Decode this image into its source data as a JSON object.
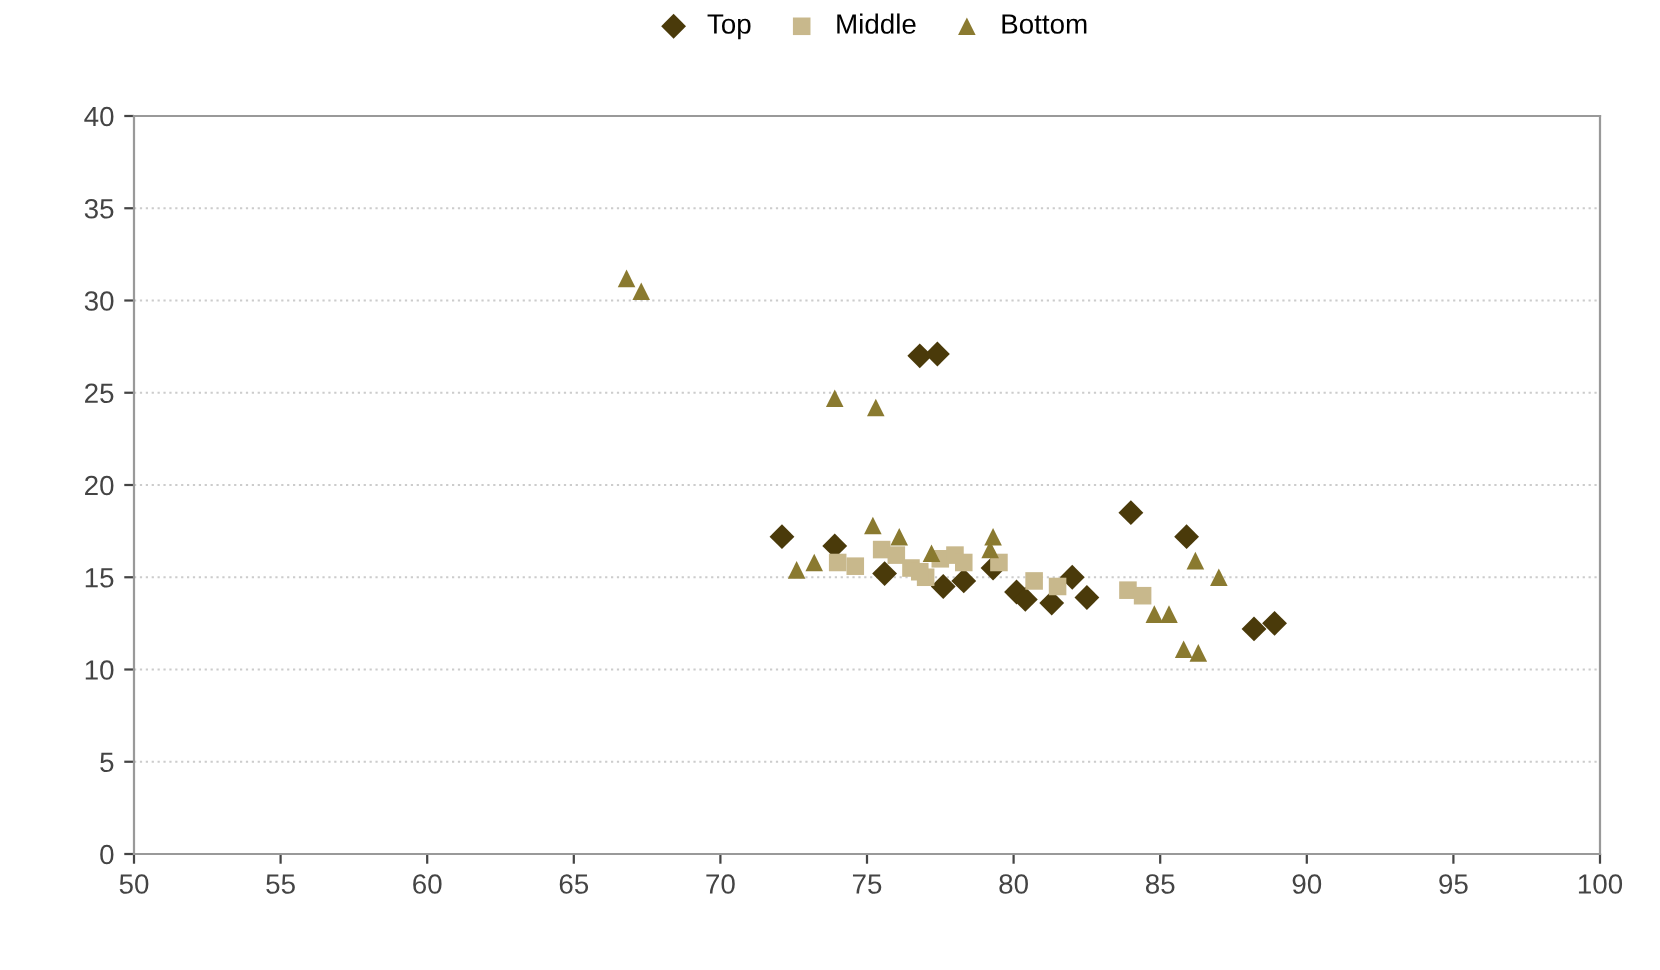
{
  "chart_data": {
    "type": "scatter",
    "xlim": [
      50,
      100
    ],
    "ylim": [
      0,
      40
    ],
    "xticks": [
      50,
      55,
      60,
      65,
      70,
      75,
      80,
      85,
      90,
      95,
      100
    ],
    "yticks": [
      0,
      5,
      10,
      15,
      20,
      25,
      30,
      35,
      40
    ],
    "grid": "y",
    "legend": "top",
    "series": [
      {
        "name": "Top",
        "color": "#4a3a0a",
        "marker": "diamond",
        "x": [
          72.1,
          73.9,
          76.8,
          77.4,
          78.3,
          79.3,
          80.1,
          80.4,
          81.3,
          82.0,
          82.5,
          84.0,
          85.9,
          88.2,
          88.9,
          77.6,
          75.6
        ],
        "values": [
          17.2,
          16.7,
          27.0,
          27.1,
          14.8,
          15.5,
          14.2,
          13.8,
          13.6,
          15.0,
          13.9,
          18.5,
          17.2,
          12.2,
          12.5,
          14.5,
          15.2
        ]
      },
      {
        "name": "Middle",
        "color": "#c8b88c",
        "marker": "square",
        "x": [
          74.0,
          74.6,
          75.5,
          76.0,
          76.5,
          77.0,
          77.5,
          78.0,
          78.3,
          79.5,
          80.7,
          81.5,
          83.9,
          84.4,
          76.8
        ],
        "values": [
          15.8,
          15.6,
          16.5,
          16.2,
          15.5,
          15.0,
          16.0,
          16.2,
          15.8,
          15.8,
          14.8,
          14.5,
          14.3,
          14.0,
          15.3
        ]
      },
      {
        "name": "Bottom",
        "color": "#8a7a30",
        "marker": "triangle",
        "x": [
          66.8,
          67.3,
          73.9,
          75.3,
          72.6,
          73.2,
          75.2,
          76.1,
          77.2,
          79.3,
          84.8,
          85.3,
          85.8,
          86.3,
          86.2,
          87.0,
          79.2
        ],
        "values": [
          31.2,
          30.5,
          24.7,
          24.2,
          15.4,
          15.8,
          17.8,
          17.2,
          16.3,
          17.2,
          13.0,
          13.0,
          11.1,
          10.9,
          15.9,
          15.0,
          16.5
        ]
      }
    ]
  }
}
